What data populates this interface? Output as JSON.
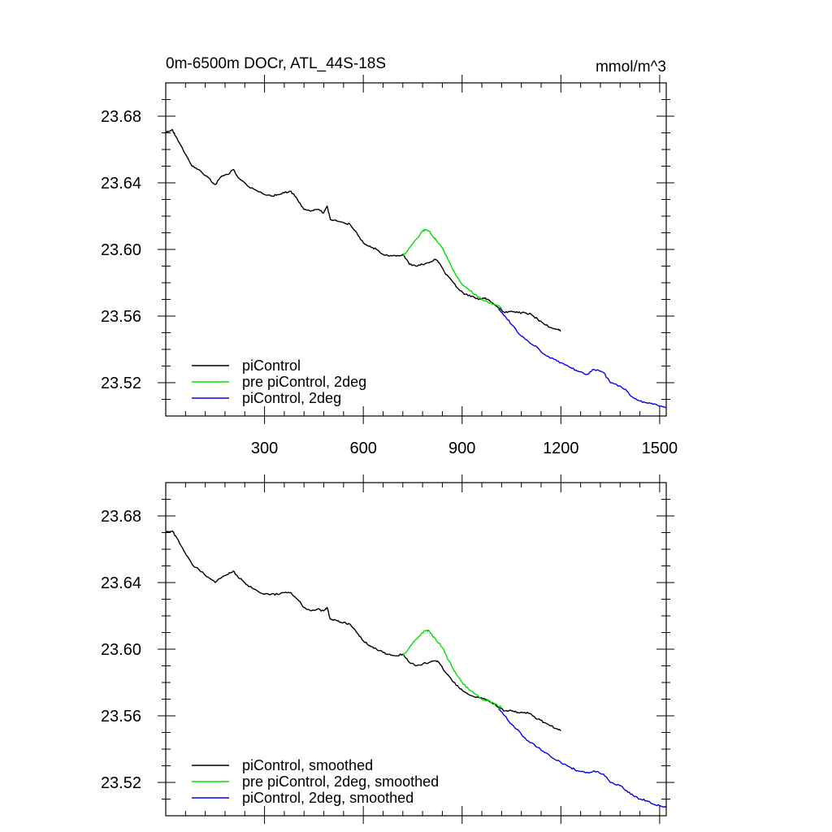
{
  "chart_data": [
    {
      "type": "line",
      "title": "0m-6500m DOCr, ATL_44S-18S",
      "units": "mmol/m^3",
      "xlabel": "",
      "ylabel": "",
      "xlim": [
        0,
        1520
      ],
      "ylim": [
        23.5,
        23.7
      ],
      "xticks": [
        300,
        600,
        900,
        1200,
        1500
      ],
      "xtick_labels": [
        "300",
        "600",
        "900",
        "1200",
        "1500"
      ],
      "yticks": [
        23.52,
        23.56,
        23.6,
        23.64,
        23.68
      ],
      "ytick_labels": [
        "23.52",
        "23.56",
        "23.60",
        "23.64",
        "23.68"
      ],
      "grid": false,
      "legend_position": "bottom-left",
      "series": [
        {
          "name": "piControl",
          "color": "#000000",
          "x": [
            1,
            20,
            30,
            50,
            80,
            100,
            130,
            150,
            170,
            190,
            205,
            220,
            235,
            250,
            270,
            300,
            320,
            340,
            360,
            380,
            400,
            420,
            440,
            460,
            480,
            490,
            500,
            520,
            540,
            560,
            580,
            600,
            620,
            640,
            660,
            680,
            700,
            720,
            740,
            760,
            780,
            800,
            820,
            830,
            850,
            870,
            890,
            910,
            930,
            950,
            970,
            990,
            1010,
            1030,
            1050,
            1070,
            1090,
            1110,
            1130,
            1150,
            1170,
            1190,
            1200
          ],
          "y": [
            23.67,
            23.672,
            23.668,
            23.661,
            23.65,
            23.648,
            23.643,
            23.639,
            23.644,
            23.645,
            23.648,
            23.643,
            23.641,
            23.638,
            23.636,
            23.633,
            23.632,
            23.633,
            23.634,
            23.635,
            23.63,
            23.624,
            23.623,
            23.624,
            23.622,
            23.626,
            23.618,
            23.617,
            23.616,
            23.615,
            23.61,
            23.604,
            23.602,
            23.6,
            23.597,
            23.596,
            23.596,
            23.597,
            23.591,
            23.59,
            23.591,
            23.592,
            23.594,
            23.592,
            23.585,
            23.581,
            23.576,
            23.573,
            23.572,
            23.57,
            23.571,
            23.568,
            23.565,
            23.562,
            23.563,
            23.562,
            23.562,
            23.561,
            23.558,
            23.555,
            23.553,
            23.552,
            23.551
          ]
        },
        {
          "name": "pre piControl, 2deg",
          "color": "#00e000",
          "x": [
            720,
            740,
            760,
            780,
            790,
            800,
            810,
            820,
            840,
            860,
            880,
            900,
            920,
            940,
            960,
            980,
            1000,
            1020
          ],
          "y": [
            23.596,
            23.601,
            23.606,
            23.611,
            23.612,
            23.611,
            23.608,
            23.606,
            23.601,
            23.593,
            23.585,
            23.579,
            23.576,
            23.573,
            23.57,
            23.568,
            23.567,
            23.565
          ]
        },
        {
          "name": "piControl, 2deg",
          "color": "#0000ee",
          "x": [
            1010,
            1030,
            1050,
            1080,
            1100,
            1130,
            1150,
            1180,
            1200,
            1230,
            1250,
            1280,
            1300,
            1330,
            1350,
            1380,
            1400,
            1420,
            1440,
            1460,
            1480,
            1500,
            1520
          ],
          "y": [
            23.564,
            23.56,
            23.555,
            23.548,
            23.545,
            23.541,
            23.537,
            23.534,
            23.532,
            23.529,
            23.527,
            23.525,
            23.528,
            23.526,
            23.52,
            23.518,
            23.515,
            23.511,
            23.509,
            23.508,
            23.507,
            23.506,
            23.505
          ]
        }
      ]
    },
    {
      "type": "line",
      "title": "",
      "units": "",
      "xlabel": "",
      "ylabel": "",
      "xlim": [
        0,
        1520
      ],
      "ylim": [
        23.5,
        23.7
      ],
      "xticks": [
        300,
        600,
        900,
        1200,
        1500
      ],
      "xtick_labels": [],
      "yticks": [
        23.52,
        23.56,
        23.6,
        23.64,
        23.68
      ],
      "ytick_labels": [
        "23.52",
        "23.56",
        "23.60",
        "23.64",
        "23.68"
      ],
      "grid": false,
      "legend_position": "bottom-left",
      "series": [
        {
          "name": "piControl, smoothed",
          "color": "#000000",
          "x": [
            1,
            20,
            30,
            50,
            80,
            100,
            130,
            150,
            170,
            190,
            205,
            220,
            235,
            250,
            270,
            300,
            320,
            340,
            360,
            380,
            400,
            420,
            440,
            460,
            480,
            490,
            500,
            520,
            540,
            560,
            580,
            600,
            620,
            640,
            660,
            680,
            700,
            720,
            740,
            760,
            780,
            800,
            820,
            830,
            850,
            870,
            890,
            910,
            930,
            950,
            970,
            990,
            1010,
            1030,
            1050,
            1070,
            1090,
            1110,
            1130,
            1150,
            1170,
            1190,
            1200
          ],
          "y": [
            23.67,
            23.671,
            23.668,
            23.661,
            23.651,
            23.648,
            23.643,
            23.64,
            23.643,
            23.645,
            23.647,
            23.643,
            23.641,
            23.638,
            23.636,
            23.633,
            23.633,
            23.633,
            23.634,
            23.634,
            23.63,
            23.625,
            23.623,
            23.624,
            23.623,
            23.625,
            23.618,
            23.617,
            23.616,
            23.615,
            23.61,
            23.605,
            23.602,
            23.6,
            23.598,
            23.597,
            23.596,
            23.597,
            23.592,
            23.59,
            23.591,
            23.592,
            23.593,
            23.592,
            23.586,
            23.581,
            23.577,
            23.574,
            23.572,
            23.571,
            23.57,
            23.568,
            23.565,
            23.563,
            23.563,
            23.562,
            23.562,
            23.561,
            23.558,
            23.556,
            23.554,
            23.552,
            23.551
          ]
        },
        {
          "name": "pre piControl, 2deg, smoothed",
          "color": "#00e000",
          "x": [
            720,
            740,
            760,
            780,
            790,
            800,
            810,
            820,
            840,
            860,
            880,
            900,
            920,
            940,
            960,
            980,
            1000,
            1020
          ],
          "y": [
            23.596,
            23.601,
            23.606,
            23.61,
            23.611,
            23.611,
            23.608,
            23.606,
            23.601,
            23.593,
            23.586,
            23.58,
            23.576,
            23.573,
            23.57,
            23.569,
            23.567,
            23.565
          ]
        },
        {
          "name": "piControl, 2deg, smoothed",
          "color": "#0000ee",
          "x": [
            1010,
            1030,
            1050,
            1080,
            1100,
            1130,
            1150,
            1180,
            1200,
            1230,
            1250,
            1280,
            1300,
            1330,
            1350,
            1380,
            1400,
            1420,
            1440,
            1460,
            1480,
            1500,
            1520
          ],
          "y": [
            23.564,
            23.56,
            23.555,
            23.549,
            23.545,
            23.541,
            23.538,
            23.534,
            23.532,
            23.529,
            23.527,
            23.526,
            23.527,
            23.525,
            23.52,
            23.518,
            23.515,
            23.512,
            23.51,
            23.509,
            23.507,
            23.506,
            23.505
          ]
        }
      ]
    }
  ]
}
